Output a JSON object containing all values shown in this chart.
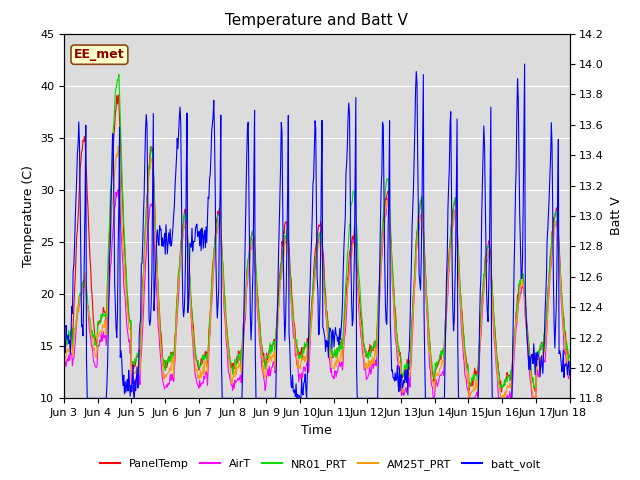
{
  "title": "Temperature and Batt V",
  "xlabel": "Time",
  "ylabel_left": "Temperature (C)",
  "ylabel_right": "Batt V",
  "ylim_left": [
    10,
    45
  ],
  "ylim_right": [
    11.8,
    14.2
  ],
  "annotation_text": "EE_met",
  "background_color": "#ffffff",
  "plot_bg_color": "#dcdcdc",
  "legend": [
    {
      "label": "PanelTemp",
      "color": "#ff0000"
    },
    {
      "label": "AirT",
      "color": "#ff00ff"
    },
    {
      "label": "NR01_PRT",
      "color": "#00dd00"
    },
    {
      "label": "AM25T_PRT",
      "color": "#ff9900"
    },
    {
      "label": "batt_volt",
      "color": "#0000ff"
    }
  ],
  "xtick_labels": [
    "Jun 3",
    "Jun 4",
    "Jun 5",
    "Jun 6",
    "Jun 7",
    "Jun 8",
    "Jun 9",
    "Jun 10",
    "Jun 11",
    "Jun 12",
    "Jun 13",
    "Jun 14",
    "Jun 15",
    "Jun 16",
    "Jun 17",
    "Jun 18"
  ],
  "yticks_left": [
    10,
    15,
    20,
    25,
    30,
    35,
    40,
    45
  ],
  "yticks_right": [
    11.8,
    12.0,
    12.2,
    12.4,
    12.6,
    12.8,
    13.0,
    13.2,
    13.4,
    13.6,
    13.8,
    14.0,
    14.2
  ],
  "grid_color": "#ffffff",
  "title_fontsize": 11,
  "axis_fontsize": 9,
  "tick_fontsize": 8,
  "legend_fontsize": 8,
  "linewidth": 0.8
}
